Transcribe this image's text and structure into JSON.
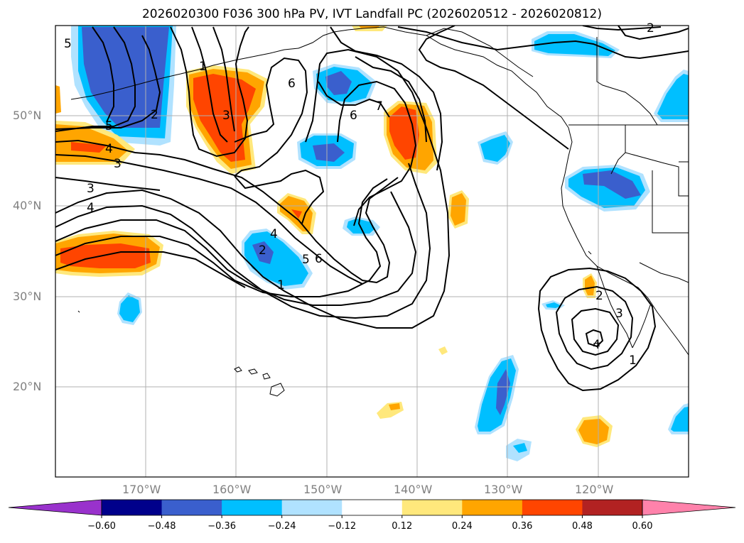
{
  "title": "2026020300 F036 300 hPa PV, IVT Landfall PC (2026020512 - 2026020812)",
  "lat_labels": [
    "50°N",
    "40°N",
    "30°N",
    "20°N"
  ],
  "lon_labels": [
    "170°W",
    "160°W",
    "150°W",
    "140°W",
    "130°W",
    "120°W"
  ],
  "colorbar": {
    "ticks": [
      "−0.60",
      "−0.48",
      "−0.36",
      "−0.24",
      "−0.12",
      "0.12",
      "0.24",
      "0.36",
      "0.48",
      "0.60"
    ],
    "colors": [
      "#9932cc",
      "#00008b",
      "#3a5fcd",
      "#00bfff",
      "#b0e2ff",
      "#ffffff",
      "#ffe87c",
      "#ffa500",
      "#ff4500",
      "#b22222",
      "#ff82ab"
    ]
  },
  "contour_labels": [
    "5",
    "2",
    "1",
    "3",
    "6",
    "7",
    "6",
    "5",
    "4",
    "3",
    "3",
    "4",
    "4",
    "2",
    "5",
    "6",
    "1",
    "2",
    "3",
    "4",
    "1",
    "2"
  ],
  "colors": {
    "lightblue": "#b0e2ff",
    "cyan": "#00bfff",
    "blue": "#3a5fcd",
    "yellow": "#ffe87c",
    "orange": "#ffa500",
    "red": "#ff4500"
  }
}
